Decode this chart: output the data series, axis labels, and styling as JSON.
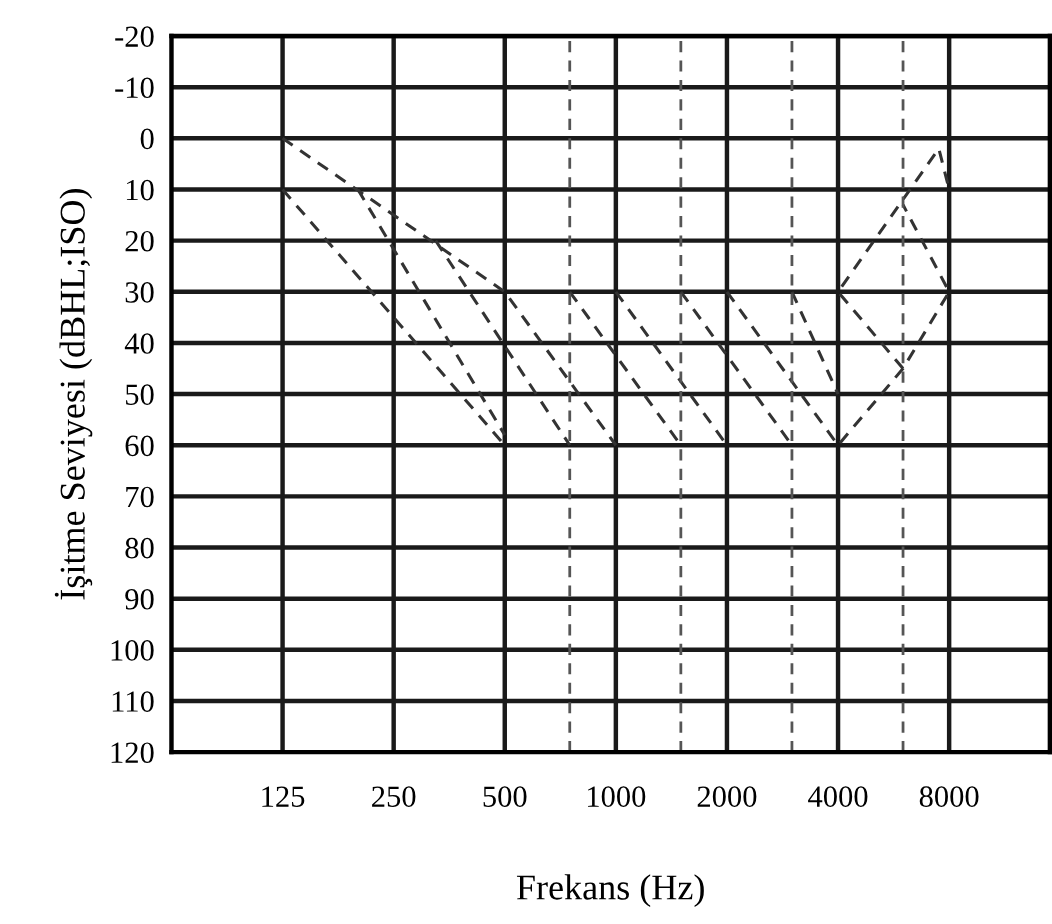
{
  "chart_data": {
    "type": "line",
    "xlabel": "Frekans (Hz)",
    "ylabel": "İşitme Seviyesi (dBHL;ISO)",
    "log": "x",
    "xlim": [
      62.5,
      15000
    ],
    "xticks": [
      125,
      250,
      500,
      1000,
      2000,
      4000,
      8000
    ],
    "ylim": [
      120,
      -20
    ],
    "yticks": [
      -20,
      -10,
      0,
      10,
      20,
      30,
      40,
      50,
      60,
      70,
      80,
      90,
      100,
      110,
      120
    ],
    "grid": true,
    "marker": "none",
    "line_style": "dashed",
    "ref_lines": [
      {
        "axis": "x",
        "value": 750,
        "color": "#555555",
        "line_style": "dashed"
      },
      {
        "axis": "x",
        "value": 1500,
        "color": "#555555",
        "line_style": "dashed"
      },
      {
        "axis": "x",
        "value": 3000,
        "color": "#555555",
        "line_style": "dashed"
      },
      {
        "axis": "x",
        "value": 6000,
        "color": "#555555",
        "line_style": "dashed"
      }
    ],
    "series": [
      {
        "color": "#333333",
        "x": [
          125,
          500,
          1000
        ],
        "values": [
          0,
          30,
          60
        ]
      },
      {
        "color": "#333333",
        "x": [
          125,
          500
        ],
        "values": [
          10,
          60
        ]
      },
      {
        "color": "#333333",
        "x": [
          200,
          500
        ],
        "values": [
          10,
          58
        ]
      },
      {
        "color": "#333333",
        "x": [
          325,
          750
        ],
        "values": [
          20,
          60
        ]
      },
      {
        "color": "#333333",
        "x": [
          750,
          1500
        ],
        "values": [
          30,
          60
        ]
      },
      {
        "color": "#333333",
        "x": [
          1000,
          2000
        ],
        "values": [
          30,
          60
        ]
      },
      {
        "color": "#333333",
        "x": [
          1500,
          3000
        ],
        "values": [
          30,
          60
        ]
      },
      {
        "color": "#333333",
        "x": [
          2000,
          4000,
          6000,
          8000,
          6000
        ],
        "values": [
          30,
          60,
          45,
          30,
          13
        ]
      },
      {
        "color": "#333333",
        "x": [
          3000,
          4000
        ],
        "values": [
          30,
          50
        ]
      },
      {
        "color": "#333333",
        "x": [
          6000,
          4000,
          7500,
          8000
        ],
        "values": [
          45,
          30,
          2,
          10
        ]
      }
    ]
  }
}
